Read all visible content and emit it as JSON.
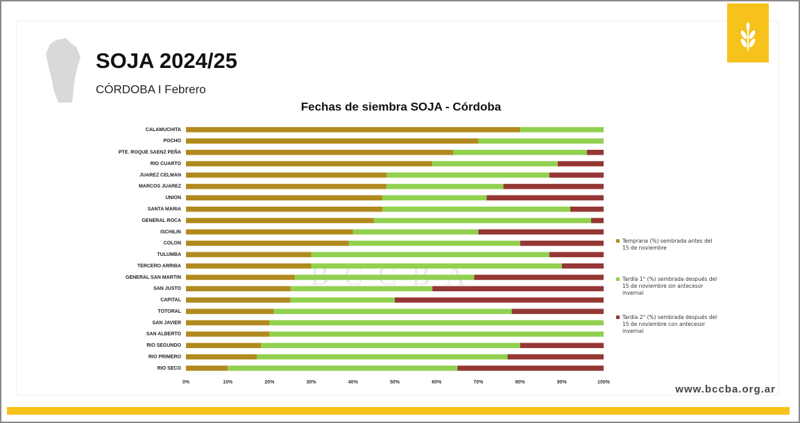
{
  "header": {
    "title": "SOJA 2024/25",
    "subtitle": "CÓRDOBA I Febrero"
  },
  "footer": {
    "url": "www.bccba.org.ar"
  },
  "chart_data": {
    "type": "stacked-barh",
    "title": "Fechas de siembra SOJA - Córdoba",
    "watermark": "BCCBA",
    "categories": [
      "CALAMUCHITA",
      "POCHO",
      "PTE. ROQUE SAENZ PEÑA",
      "RIO CUARTO",
      "JUAREZ CELMAN",
      "MARCOS JUAREZ",
      "UNION",
      "SANTA MARIA",
      "GENERAL ROCA",
      "ISCHILIN",
      "COLON",
      "TULUMBA",
      "TERCERO ARRIBA",
      "GENERAL SAN MARTIN",
      "SAN JUSTO",
      "CAPITAL",
      "TOTORAL",
      "SAN JAVIER",
      "SAN ALBERTO",
      "RIO SEGUNDO",
      "RIO PRIMERO",
      "RIO SECO"
    ],
    "series": [
      {
        "name": "Temprana (%) sembrada antes del 15 de noviembre",
        "color": "#b08a1e",
        "values": [
          80,
          70,
          64,
          59,
          48,
          48,
          47,
          47,
          45,
          40,
          39,
          30,
          30,
          26,
          25,
          25,
          21,
          20,
          20,
          18,
          17,
          10
        ]
      },
      {
        "name": "Tardía 1° (%) sembrada después del 15 de noviembre sin antecesor invernal",
        "color": "#92d050",
        "values": [
          20,
          30,
          32,
          30,
          39,
          28,
          25,
          45,
          52,
          30,
          41,
          57,
          60,
          43,
          34,
          25,
          57,
          80,
          80,
          62,
          60,
          55
        ]
      },
      {
        "name": "Tardía 2° (%) sembrada después del 15 de noviembre con antecesor invernal",
        "color": "#953735",
        "values": [
          0,
          0,
          4,
          11,
          13,
          24,
          28,
          8,
          3,
          30,
          20,
          13,
          10,
          31,
          41,
          50,
          22,
          0,
          0,
          20,
          23,
          35
        ]
      }
    ],
    "xlim": [
      0,
      100
    ],
    "xticks": [
      {
        "value": 0,
        "label": "0%"
      },
      {
        "value": 10,
        "label": "10%"
      },
      {
        "value": 20,
        "label": "20%"
      },
      {
        "value": 30,
        "label": "30%"
      },
      {
        "value": 40,
        "label": "40%"
      },
      {
        "value": 50,
        "label": "50%"
      },
      {
        "value": 60,
        "label": "60%"
      },
      {
        "value": 70,
        "label": "70%"
      },
      {
        "value": 80,
        "label": "80%"
      },
      {
        "value": 90,
        "label": "90%"
      },
      {
        "value": 100,
        "label": "100%"
      }
    ],
    "grid": false,
    "legend": "right"
  }
}
